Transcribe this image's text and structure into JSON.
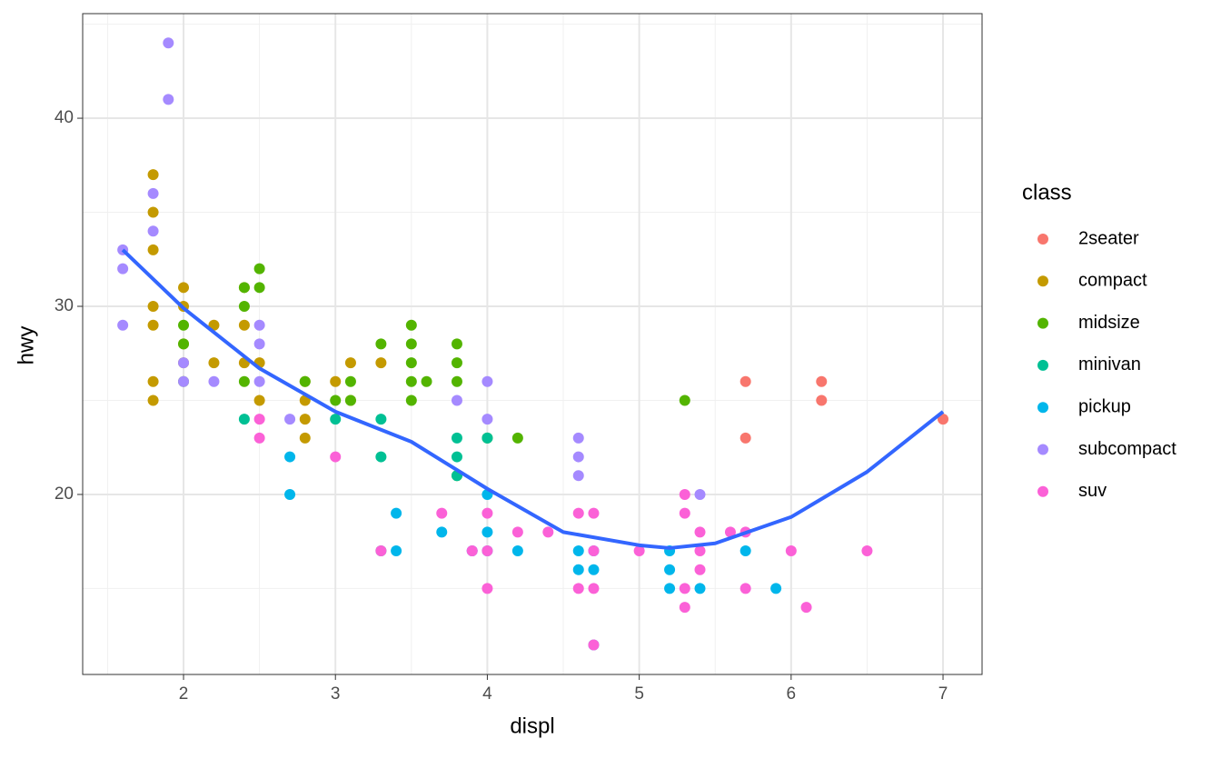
{
  "chart_data": {
    "type": "scatter",
    "xlabel": "displ",
    "ylabel": "hwy",
    "legend_title": "class",
    "xlim": [
      1.336,
      7.257
    ],
    "ylim": [
      10.43,
      45.56
    ],
    "xticks": [
      2,
      3,
      4,
      5,
      6,
      7
    ],
    "yticks": [
      20,
      30,
      40
    ],
    "xminor": [
      1.5,
      2.5,
      3.5,
      4.5,
      5.5,
      6.5
    ],
    "yminor": [
      15,
      25,
      35,
      45
    ],
    "grid": true,
    "legend": "right",
    "series": [
      {
        "name": "2seater",
        "color": "#F8766D",
        "x": [
          5.7,
          5.7,
          6.2,
          6.2,
          7.0
        ],
        "y": [
          26,
          23,
          26,
          25,
          24
        ]
      },
      {
        "name": "compact",
        "color": "#C49A00",
        "x": [
          1.8,
          2.0,
          2.0,
          2.8,
          3.1,
          1.8,
          1.8,
          2.0,
          2.0,
          2.8,
          3.1,
          1.8,
          1.8,
          1.8,
          1.8,
          2.2,
          2.2,
          2.4,
          2.4,
          2.4,
          2.5,
          2.5,
          3.0,
          3.3,
          2.8,
          2.8
        ],
        "y": [
          29,
          31,
          30,
          26,
          27,
          26,
          25,
          28,
          27,
          25,
          25,
          37,
          35,
          33,
          30,
          29,
          27,
          31,
          29,
          27,
          27,
          25,
          26,
          27,
          24,
          23
        ]
      },
      {
        "name": "midsize",
        "color": "#53B400",
        "x": [
          2.0,
          2.0,
          2.0,
          2.4,
          2.4,
          2.5,
          2.5,
          2.8,
          3.0,
          3.1,
          3.1,
          3.3,
          3.5,
          3.5,
          3.5,
          3.5,
          3.5,
          3.6,
          3.8,
          3.8,
          3.8,
          3.8,
          4.0,
          4.2,
          5.3,
          2.4
        ],
        "y": [
          29,
          28,
          26,
          30,
          26,
          32,
          31,
          26,
          25,
          26,
          25,
          28,
          29,
          28,
          27,
          26,
          25,
          26,
          28,
          27,
          26,
          21,
          23,
          23,
          25,
          31
        ]
      },
      {
        "name": "minivan",
        "color": "#00C094",
        "x": [
          2.4,
          3.0,
          3.3,
          3.3,
          3.3,
          3.8,
          3.8,
          3.8,
          4.0
        ],
        "y": [
          24,
          24,
          22,
          24,
          17,
          22,
          21,
          23,
          23
        ]
      },
      {
        "name": "pickup",
        "color": "#00B6EB",
        "x": [
          2.7,
          2.7,
          3.4,
          3.4,
          3.7,
          4.0,
          4.0,
          4.2,
          4.6,
          4.6,
          4.7,
          4.7,
          4.7,
          5.2,
          5.2,
          5.2,
          5.4,
          5.7,
          5.9,
          4.0,
          3.9
        ],
        "y": [
          22,
          20,
          19,
          17,
          18,
          20,
          18,
          17,
          17,
          16,
          17,
          16,
          12,
          17,
          16,
          15,
          15,
          17,
          15,
          17,
          17
        ]
      },
      {
        "name": "subcompact",
        "color": "#A58AFF",
        "x": [
          1.6,
          1.6,
          1.6,
          1.8,
          1.8,
          1.9,
          1.9,
          2.0,
          2.0,
          2.2,
          2.5,
          2.5,
          2.5,
          2.7,
          3.8,
          4.0,
          4.0,
          4.6,
          4.6,
          4.6,
          5.4,
          3.9
        ],
        "y": [
          33,
          32,
          29,
          36,
          34,
          44,
          41,
          27,
          26,
          26,
          29,
          28,
          26,
          24,
          25,
          26,
          24,
          23,
          22,
          21,
          20,
          17
        ]
      },
      {
        "name": "suv",
        "color": "#FB61D7",
        "x": [
          2.5,
          2.5,
          3.0,
          3.3,
          3.7,
          3.9,
          4.0,
          4.0,
          4.0,
          4.2,
          4.4,
          4.6,
          4.6,
          4.7,
          4.7,
          4.7,
          4.7,
          5.0,
          5.3,
          5.3,
          5.3,
          5.3,
          5.4,
          5.4,
          5.4,
          5.6,
          5.7,
          5.7,
          6.0,
          6.1,
          6.5
        ],
        "y": [
          24,
          23,
          22,
          17,
          19,
          17,
          19,
          17,
          15,
          18,
          18,
          19,
          15,
          19,
          17,
          15,
          12,
          17,
          20,
          19,
          15,
          14,
          18,
          17,
          16,
          18,
          18,
          15,
          17,
          14,
          17
        ]
      }
    ],
    "smooth": {
      "color": "#3366FF",
      "x": [
        1.6,
        2.0,
        2.5,
        3.0,
        3.5,
        4.0,
        4.5,
        5.0,
        5.2,
        5.5,
        6.0,
        6.5,
        7.0
      ],
      "y": [
        33,
        29.9,
        26.7,
        24.4,
        22.8,
        20.3,
        18.0,
        17.3,
        17.15,
        17.4,
        18.8,
        21.2,
        24.4
      ]
    }
  }
}
